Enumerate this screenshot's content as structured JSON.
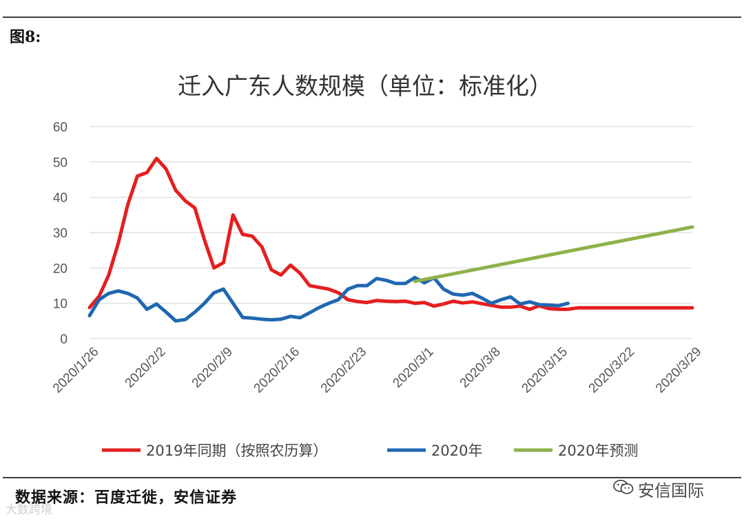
{
  "figure_label": "图8:",
  "source_note": "数据来源：百度迁徙，安信证券",
  "watermark_left": "大数跨境",
  "watermark_right": "安信国际",
  "colors": {
    "s2019": "#e61e1e",
    "s2020": "#1f67b1",
    "forecast": "#8db24a",
    "grid": "#d9d9d9",
    "axis_text": "#555555"
  },
  "chart_data": {
    "type": "line",
    "title": "迁入广东人数规模（单位：标准化）",
    "xlabel": "",
    "ylabel": "",
    "ylim": [
      0,
      60
    ],
    "yticks": [
      0,
      10,
      20,
      30,
      40,
      50,
      60
    ],
    "x_range_days": [
      0,
      63
    ],
    "xticks": [
      {
        "day": 0,
        "label": "2020/1/26"
      },
      {
        "day": 7,
        "label": "2020/2/2"
      },
      {
        "day": 14,
        "label": "2020/2/9"
      },
      {
        "day": 21,
        "label": "2020/2/16"
      },
      {
        "day": 28,
        "label": "2020/2/23"
      },
      {
        "day": 35,
        "label": "2020/3/1"
      },
      {
        "day": 42,
        "label": "2020/3/8"
      },
      {
        "day": 49,
        "label": "2020/3/15"
      },
      {
        "day": 56,
        "label": "2020/3/22"
      },
      {
        "day": 63,
        "label": "2020/3/29"
      }
    ],
    "legend_position": "bottom",
    "series": [
      {
        "name": "2019年同期（按照农历算）",
        "color_key": "s2019",
        "x": [
          0,
          1,
          2,
          3,
          4,
          5,
          6,
          7,
          8,
          9,
          10,
          11,
          12,
          13,
          14,
          15,
          16,
          17,
          18,
          19,
          20,
          21,
          22,
          23,
          24,
          25,
          26,
          27,
          28,
          29,
          30,
          31,
          32,
          33,
          34,
          35,
          36,
          37,
          38,
          39,
          40,
          41,
          42,
          43,
          44,
          45,
          46,
          47,
          48,
          49,
          50,
          51,
          52,
          53,
          54,
          55,
          56,
          57,
          58,
          59,
          60,
          61,
          62,
          63
        ],
        "y": [
          8.8,
          12,
          18,
          27,
          38,
          46,
          47,
          51,
          48,
          42,
          39,
          37,
          28,
          20,
          21.5,
          35,
          29.5,
          29,
          26,
          19.5,
          18,
          20.8,
          18.5,
          15,
          14.5,
          14,
          13,
          11,
          10.5,
          10.2,
          10.8,
          10.6,
          10.5,
          10.6,
          10,
          10.2,
          9.2,
          9.8,
          10.6,
          10.1,
          10.4,
          9.9,
          9.4,
          8.9,
          8.9,
          9.2,
          8.3,
          9.3,
          8.5,
          8.3,
          8.3,
          8.7,
          8.7,
          8.7,
          8.7,
          8.7,
          8.7,
          8.7,
          8.7,
          8.7,
          8.7,
          8.7,
          8.7,
          8.7
        ]
      },
      {
        "name": "2020年",
        "color_key": "s2020",
        "x": [
          0,
          1,
          2,
          3,
          4,
          5,
          6,
          7,
          8,
          9,
          10,
          11,
          12,
          13,
          14,
          15,
          16,
          17,
          18,
          19,
          20,
          21,
          22,
          23,
          24,
          25,
          26,
          27,
          28,
          29,
          30,
          31,
          32,
          33,
          34,
          35,
          36,
          37,
          38,
          39,
          40,
          41,
          42,
          43,
          44,
          45,
          46,
          47,
          48,
          49,
          50
        ],
        "y": [
          6.5,
          11,
          12.8,
          13.5,
          12.8,
          11.5,
          8.3,
          9.8,
          7.5,
          5,
          5.4,
          7.5,
          10,
          13,
          14,
          10,
          6,
          5.8,
          5.5,
          5.3,
          5.5,
          6.3,
          5.9,
          7.3,
          8.8,
          10,
          11,
          14,
          15,
          15,
          17,
          16.5,
          15.6,
          15.6,
          17.3,
          15.8,
          17.2,
          14,
          12.6,
          12.3,
          12.8,
          11.5,
          10,
          11,
          11.8,
          9.8,
          10.4,
          9.6,
          9.5,
          9.3,
          10
        ]
      },
      {
        "name": "2020年预测",
        "color_key": "forecast",
        "x": [
          34,
          63
        ],
        "y": [
          16.2,
          31.6
        ]
      }
    ]
  }
}
